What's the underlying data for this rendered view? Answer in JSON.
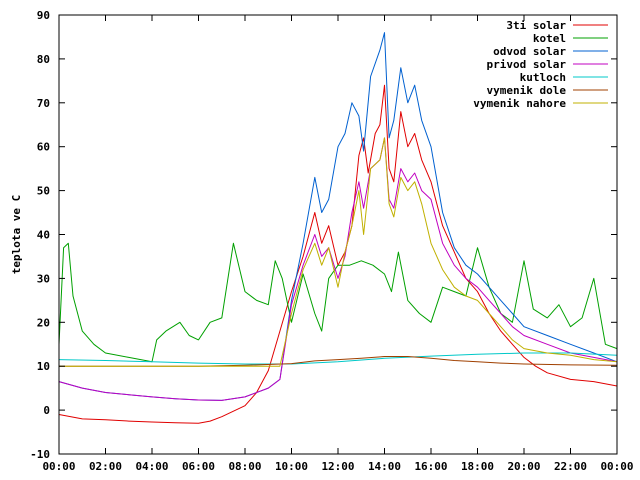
{
  "chart_data": {
    "type": "line",
    "title": "",
    "xlabel": "",
    "ylabel": "teplota ve C",
    "xlim": [
      0,
      24
    ],
    "ylim": [
      -10,
      90
    ],
    "x_ticks": [
      {
        "value": 0,
        "label": "00:00"
      },
      {
        "value": 2,
        "label": "02:00"
      },
      {
        "value": 4,
        "label": "04:00"
      },
      {
        "value": 6,
        "label": "06:00"
      },
      {
        "value": 8,
        "label": "08:00"
      },
      {
        "value": 10,
        "label": "10:00"
      },
      {
        "value": 12,
        "label": "12:00"
      },
      {
        "value": 14,
        "label": "14:00"
      },
      {
        "value": 16,
        "label": "16:00"
      },
      {
        "value": 18,
        "label": "18:00"
      },
      {
        "value": 20,
        "label": "20:00"
      },
      {
        "value": 22,
        "label": "22:00"
      },
      {
        "value": 24,
        "label": "00:00"
      }
    ],
    "y_ticks": [
      {
        "value": -10,
        "label": "-10"
      },
      {
        "value": 0,
        "label": "0"
      },
      {
        "value": 10,
        "label": "10"
      },
      {
        "value": 20,
        "label": "20"
      },
      {
        "value": 30,
        "label": "30"
      },
      {
        "value": 40,
        "label": "40"
      },
      {
        "value": 50,
        "label": "50"
      },
      {
        "value": 60,
        "label": "60"
      },
      {
        "value": 70,
        "label": "70"
      },
      {
        "value": 80,
        "label": "80"
      },
      {
        "value": 90,
        "label": "90"
      }
    ],
    "grid": false,
    "legend": "top-right",
    "series": [
      {
        "name": "3ti solar",
        "color": "#e00000",
        "points": [
          [
            0,
            -1
          ],
          [
            1,
            -2
          ],
          [
            2,
            -2.2
          ],
          [
            3,
            -2.5
          ],
          [
            4,
            -2.7
          ],
          [
            5,
            -2.9
          ],
          [
            6,
            -3
          ],
          [
            6.5,
            -2.5
          ],
          [
            7,
            -1.5
          ],
          [
            8,
            1
          ],
          [
            8.5,
            4
          ],
          [
            9,
            9
          ],
          [
            9.5,
            18
          ],
          [
            10,
            27
          ],
          [
            10.5,
            35
          ],
          [
            11,
            45
          ],
          [
            11.3,
            38
          ],
          [
            11.6,
            42
          ],
          [
            12,
            33
          ],
          [
            12.3,
            36
          ],
          [
            12.6,
            42
          ],
          [
            12.9,
            58
          ],
          [
            13.1,
            62
          ],
          [
            13.3,
            54
          ],
          [
            13.6,
            63
          ],
          [
            13.8,
            65
          ],
          [
            14,
            74
          ],
          [
            14.2,
            55
          ],
          [
            14.4,
            52
          ],
          [
            14.7,
            68
          ],
          [
            15,
            60
          ],
          [
            15.3,
            63
          ],
          [
            15.6,
            57
          ],
          [
            16,
            52
          ],
          [
            16.5,
            42
          ],
          [
            17,
            36
          ],
          [
            17.5,
            30
          ],
          [
            18,
            27
          ],
          [
            18.5,
            22
          ],
          [
            19,
            18
          ],
          [
            19.5,
            15
          ],
          [
            20,
            12
          ],
          [
            20.5,
            10
          ],
          [
            21,
            8.5
          ],
          [
            22,
            7
          ],
          [
            23,
            6.5
          ],
          [
            24,
            5.5
          ]
        ]
      },
      {
        "name": "kotel",
        "color": "#00a000",
        "points": [
          [
            0,
            15
          ],
          [
            0.2,
            37
          ],
          [
            0.4,
            38
          ],
          [
            0.6,
            26
          ],
          [
            1,
            18
          ],
          [
            1.5,
            15
          ],
          [
            2,
            13
          ],
          [
            3,
            12
          ],
          [
            4,
            11
          ],
          [
            4.2,
            16
          ],
          [
            4.6,
            18
          ],
          [
            5.2,
            20
          ],
          [
            5.6,
            17
          ],
          [
            6,
            16
          ],
          [
            6.5,
            20
          ],
          [
            7,
            21
          ],
          [
            7.5,
            38
          ],
          [
            8,
            27
          ],
          [
            8.5,
            25
          ],
          [
            9,
            24
          ],
          [
            9.3,
            34
          ],
          [
            9.6,
            30
          ],
          [
            10,
            20
          ],
          [
            10.5,
            31
          ],
          [
            11,
            22
          ],
          [
            11.3,
            18
          ],
          [
            11.6,
            30
          ],
          [
            12,
            33
          ],
          [
            12.5,
            33
          ],
          [
            13,
            34
          ],
          [
            13.5,
            33
          ],
          [
            14,
            31
          ],
          [
            14.3,
            27
          ],
          [
            14.6,
            36
          ],
          [
            15,
            25
          ],
          [
            15.5,
            22
          ],
          [
            16,
            20
          ],
          [
            16.5,
            28
          ],
          [
            17,
            27
          ],
          [
            17.5,
            26
          ],
          [
            18,
            37
          ],
          [
            18.5,
            28
          ],
          [
            19,
            22
          ],
          [
            19.5,
            20
          ],
          [
            20,
            34
          ],
          [
            20.4,
            23
          ],
          [
            21,
            21
          ],
          [
            21.5,
            24
          ],
          [
            22,
            19
          ],
          [
            22.5,
            21
          ],
          [
            23,
            30
          ],
          [
            23.5,
            15
          ],
          [
            24,
            14
          ]
        ]
      },
      {
        "name": "odvod solar",
        "color": "#0060d0",
        "points": [
          [
            0,
            6.5
          ],
          [
            1,
            5
          ],
          [
            2,
            4
          ],
          [
            3,
            3.5
          ],
          [
            4,
            3
          ],
          [
            5,
            2.6
          ],
          [
            6,
            2.3
          ],
          [
            7,
            2.2
          ],
          [
            8,
            3
          ],
          [
            9,
            5
          ],
          [
            9.5,
            7
          ],
          [
            10,
            25
          ],
          [
            10.5,
            38
          ],
          [
            11,
            53
          ],
          [
            11.3,
            45
          ],
          [
            11.6,
            48
          ],
          [
            12,
            60
          ],
          [
            12.3,
            63
          ],
          [
            12.6,
            70
          ],
          [
            12.9,
            67
          ],
          [
            13.1,
            59
          ],
          [
            13.4,
            76
          ],
          [
            13.8,
            82
          ],
          [
            14,
            86
          ],
          [
            14.2,
            62
          ],
          [
            14.4,
            66
          ],
          [
            14.7,
            78
          ],
          [
            15,
            70
          ],
          [
            15.3,
            74
          ],
          [
            15.6,
            66
          ],
          [
            16,
            60
          ],
          [
            16.5,
            45
          ],
          [
            17,
            37
          ],
          [
            17.5,
            33
          ],
          [
            18,
            31
          ],
          [
            18.5,
            28
          ],
          [
            19,
            25
          ],
          [
            19.5,
            22
          ],
          [
            20,
            19
          ],
          [
            21,
            17
          ],
          [
            22,
            15
          ],
          [
            23,
            13
          ],
          [
            24,
            11
          ]
        ]
      },
      {
        "name": "privod solar",
        "color": "#c000c0",
        "points": [
          [
            0,
            6.5
          ],
          [
            1,
            5
          ],
          [
            2,
            4
          ],
          [
            3,
            3.5
          ],
          [
            4,
            3
          ],
          [
            5,
            2.6
          ],
          [
            6,
            2.3
          ],
          [
            7,
            2.2
          ],
          [
            8,
            3
          ],
          [
            9,
            5
          ],
          [
            9.5,
            7
          ],
          [
            10,
            24
          ],
          [
            10.5,
            33
          ],
          [
            11,
            40
          ],
          [
            11.3,
            35
          ],
          [
            11.6,
            37
          ],
          [
            12,
            30
          ],
          [
            12.3,
            35
          ],
          [
            12.6,
            45
          ],
          [
            12.9,
            52
          ],
          [
            13.1,
            46
          ],
          [
            13.4,
            55
          ],
          [
            13.8,
            57
          ],
          [
            14,
            62
          ],
          [
            14.2,
            48
          ],
          [
            14.4,
            46
          ],
          [
            14.7,
            55
          ],
          [
            15,
            52
          ],
          [
            15.3,
            54
          ],
          [
            15.6,
            50
          ],
          [
            16,
            48
          ],
          [
            16.5,
            38
          ],
          [
            17,
            33
          ],
          [
            17.5,
            30
          ],
          [
            18,
            28
          ],
          [
            18.5,
            25
          ],
          [
            19,
            22
          ],
          [
            19.5,
            19
          ],
          [
            20,
            17
          ],
          [
            21,
            15
          ],
          [
            22,
            13
          ],
          [
            23,
            12
          ],
          [
            24,
            11
          ]
        ]
      },
      {
        "name": "kutloch",
        "color": "#00c8c8",
        "points": [
          [
            0,
            11.5
          ],
          [
            2,
            11.3
          ],
          [
            4,
            11
          ],
          [
            6,
            10.7
          ],
          [
            8,
            10.5
          ],
          [
            10,
            10.5
          ],
          [
            12,
            11
          ],
          [
            14,
            11.8
          ],
          [
            16,
            12.3
          ],
          [
            18,
            12.7
          ],
          [
            20,
            13
          ],
          [
            22,
            13
          ],
          [
            24,
            12.5
          ]
        ]
      },
      {
        "name": "vymenik dole",
        "color": "#a04000",
        "points": [
          [
            0,
            10
          ],
          [
            2,
            10
          ],
          [
            4,
            10
          ],
          [
            6,
            10
          ],
          [
            8,
            10.2
          ],
          [
            10,
            10.6
          ],
          [
            11,
            11.2
          ],
          [
            12,
            11.5
          ],
          [
            13,
            11.8
          ],
          [
            14,
            12.2
          ],
          [
            15,
            12.2
          ],
          [
            16,
            11.8
          ],
          [
            17,
            11.3
          ],
          [
            18,
            11
          ],
          [
            19,
            10.7
          ],
          [
            20,
            10.5
          ],
          [
            22,
            10.3
          ],
          [
            24,
            10.2
          ]
        ]
      },
      {
        "name": "vymenik nahore",
        "color": "#c0b000",
        "points": [
          [
            0,
            10
          ],
          [
            2,
            10
          ],
          [
            4,
            10
          ],
          [
            6,
            10
          ],
          [
            8,
            10
          ],
          [
            9.5,
            10
          ],
          [
            10,
            22
          ],
          [
            10.5,
            32
          ],
          [
            11,
            38
          ],
          [
            11.3,
            33
          ],
          [
            11.6,
            37
          ],
          [
            12,
            28
          ],
          [
            12.3,
            36
          ],
          [
            12.6,
            42
          ],
          [
            12.9,
            50
          ],
          [
            13.1,
            40
          ],
          [
            13.4,
            55
          ],
          [
            13.8,
            57
          ],
          [
            14,
            62
          ],
          [
            14.2,
            47
          ],
          [
            14.4,
            44
          ],
          [
            14.7,
            53
          ],
          [
            15,
            50
          ],
          [
            15.3,
            52
          ],
          [
            15.6,
            47
          ],
          [
            16,
            38
          ],
          [
            16.5,
            32
          ],
          [
            17,
            28
          ],
          [
            17.5,
            26
          ],
          [
            18,
            25
          ],
          [
            18.5,
            22
          ],
          [
            19,
            19
          ],
          [
            19.5,
            16
          ],
          [
            20,
            14
          ],
          [
            21,
            13
          ],
          [
            22,
            12.5
          ],
          [
            23,
            11.5
          ],
          [
            24,
            11
          ]
        ]
      }
    ]
  }
}
